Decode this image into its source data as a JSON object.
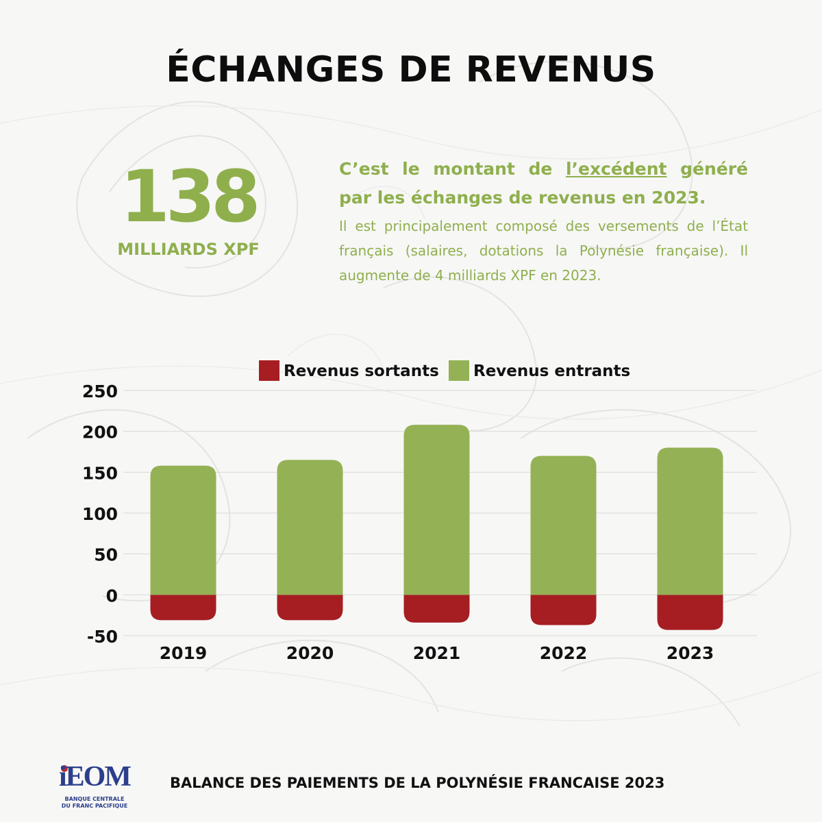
{
  "header": {
    "title": "ÉCHANGES DE REVENUS"
  },
  "highlight": {
    "value": "138",
    "unit": "MILLIARDS XPF",
    "lead_before": "C’est le montant de ",
    "lead_underlined": "l’excédent",
    "lead_after": " généré par les échanges de revenus en 2023.",
    "detail": "Il est principalement composé des versements de l’État français (salaires, dotations  la Polynésie française). Il augmente de 4 milliards XPF en 2023."
  },
  "footer": {
    "caption": "BALANCE DES PAIEMENTS DE LA  POLYNÉSIE FRANCAISE 2023",
    "logo_main": "iEOM",
    "logo_line1": "BANQUE CENTRALE",
    "logo_line2": "DU FRANC PACIFIQUE"
  },
  "colors": {
    "green": "#8faf4d",
    "bar_green": "#94b255",
    "bar_red": "#a61e22",
    "logo_red": "#c0272d",
    "logo_blue": "#2c3e8c"
  },
  "chart_data": {
    "type": "bar",
    "stacked": true,
    "categories": [
      "2019",
      "2020",
      "2021",
      "2022",
      "2023"
    ],
    "series": [
      {
        "name": "Revenus sortants",
        "color": "#a61e22",
        "values": [
          -31,
          -31,
          -34,
          -37,
          -43
        ]
      },
      {
        "name": "Revenus entrants",
        "color": "#94b255",
        "values": [
          158,
          165,
          208,
          170,
          180
        ]
      }
    ],
    "ylim": [
      -50,
      250
    ],
    "yticks": [
      250,
      200,
      150,
      100,
      50,
      0,
      -50
    ],
    "grid": true,
    "legend_position": "top-center",
    "title": "",
    "xlabel": "",
    "ylabel": ""
  }
}
